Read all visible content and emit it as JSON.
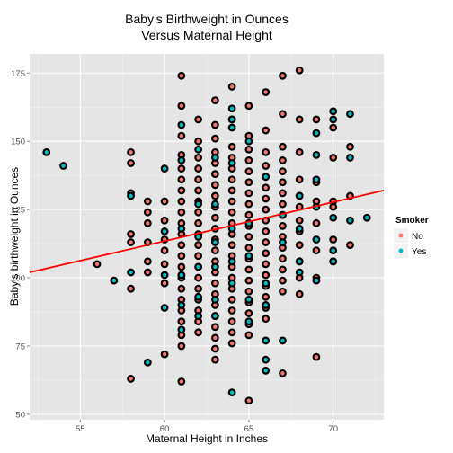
{
  "chart_data": {
    "type": "scatter",
    "title_lines": [
      "Baby's Birthweight in Ounces",
      "Versus Maternal Height"
    ],
    "xlabel": "Maternal Height in Inches",
    "ylabel": "Baby's birthweight in Ounces",
    "xlim": [
      52,
      73
    ],
    "ylim": [
      48,
      182
    ],
    "x_ticks": [
      55,
      60,
      65,
      70
    ],
    "y_ticks": [
      50,
      75,
      100,
      125,
      150,
      175
    ],
    "grid": true,
    "background": "#e5e5e5",
    "legend": {
      "title": "Smoker",
      "placement": "right",
      "entries": [
        {
          "label": "No",
          "color": "#f8766d"
        },
        {
          "label": "Yes",
          "color": "#00bfc4"
        }
      ]
    },
    "regression_line": {
      "color": "#ff0000",
      "points": [
        [
          52,
          102.0
        ],
        [
          73,
          132.0
        ]
      ]
    },
    "series": [
      {
        "name": "No",
        "color": "#f8766d",
        "points": [
          [
            56,
            105
          ],
          [
            58,
            146
          ],
          [
            58,
            142
          ],
          [
            58,
            131
          ],
          [
            58,
            116
          ],
          [
            58,
            113
          ],
          [
            58,
            96
          ],
          [
            58,
            63
          ],
          [
            59,
            128
          ],
          [
            59,
            124
          ],
          [
            59,
            120
          ],
          [
            59,
            113
          ],
          [
            59,
            106
          ],
          [
            59,
            102
          ],
          [
            60,
            128
          ],
          [
            60,
            121
          ],
          [
            60,
            114
          ],
          [
            60,
            110
          ],
          [
            60,
            105
          ],
          [
            60,
            98
          ],
          [
            60,
            72
          ],
          [
            61,
            174
          ],
          [
            61,
            163
          ],
          [
            61,
            152
          ],
          [
            61,
            145
          ],
          [
            61,
            140
          ],
          [
            61,
            136
          ],
          [
            61,
            132
          ],
          [
            61,
            128
          ],
          [
            61,
            124
          ],
          [
            61,
            120
          ],
          [
            61,
            116
          ],
          [
            61,
            112
          ],
          [
            61,
            108
          ],
          [
            61,
            104
          ],
          [
            61,
            100
          ],
          [
            61,
            96
          ],
          [
            61,
            92
          ],
          [
            61,
            88
          ],
          [
            61,
            84
          ],
          [
            61,
            79
          ],
          [
            61,
            75
          ],
          [
            61,
            62
          ],
          [
            62,
            158
          ],
          [
            62,
            150
          ],
          [
            62,
            144
          ],
          [
            62,
            140
          ],
          [
            62,
            136
          ],
          [
            62,
            132
          ],
          [
            62,
            128
          ],
          [
            62,
            124
          ],
          [
            62,
            120
          ],
          [
            62,
            116
          ],
          [
            62,
            112
          ],
          [
            62,
            108
          ],
          [
            62,
            104
          ],
          [
            62,
            100
          ],
          [
            62,
            96
          ],
          [
            62,
            92
          ],
          [
            62,
            88
          ],
          [
            62,
            84
          ],
          [
            62,
            80
          ],
          [
            63,
            165
          ],
          [
            63,
            156
          ],
          [
            63,
            151
          ],
          [
            63,
            146
          ],
          [
            63,
            142
          ],
          [
            63,
            138
          ],
          [
            63,
            134
          ],
          [
            63,
            130
          ],
          [
            63,
            126
          ],
          [
            63,
            122
          ],
          [
            63,
            118
          ],
          [
            63,
            114
          ],
          [
            63,
            110
          ],
          [
            63,
            106
          ],
          [
            63,
            102
          ],
          [
            63,
            98
          ],
          [
            63,
            94
          ],
          [
            63,
            90
          ],
          [
            63,
            86
          ],
          [
            63,
            82
          ],
          [
            63,
            78
          ],
          [
            63,
            74
          ],
          [
            63,
            70
          ],
          [
            64,
            170
          ],
          [
            64,
            158
          ],
          [
            64,
            148
          ],
          [
            64,
            144
          ],
          [
            64,
            140
          ],
          [
            64,
            136
          ],
          [
            64,
            132
          ],
          [
            64,
            128
          ],
          [
            64,
            124
          ],
          [
            64,
            120
          ],
          [
            64,
            116
          ],
          [
            64,
            112
          ],
          [
            64,
            108
          ],
          [
            64,
            104
          ],
          [
            64,
            100
          ],
          [
            64,
            96
          ],
          [
            64,
            92
          ],
          [
            64,
            88
          ],
          [
            64,
            84
          ],
          [
            64,
            80
          ],
          [
            64,
            76
          ],
          [
            65,
            163
          ],
          [
            65,
            152
          ],
          [
            65,
            147
          ],
          [
            65,
            143
          ],
          [
            65,
            139
          ],
          [
            65,
            135
          ],
          [
            65,
            131
          ],
          [
            65,
            127
          ],
          [
            65,
            123
          ],
          [
            65,
            119
          ],
          [
            65,
            115
          ],
          [
            65,
            111
          ],
          [
            65,
            107
          ],
          [
            65,
            103
          ],
          [
            65,
            99
          ],
          [
            65,
            95
          ],
          [
            65,
            91
          ],
          [
            65,
            87
          ],
          [
            65,
            83
          ],
          [
            65,
            79
          ],
          [
            65,
            55
          ],
          [
            66,
            168
          ],
          [
            66,
            154
          ],
          [
            66,
            146
          ],
          [
            66,
            141
          ],
          [
            66,
            137
          ],
          [
            66,
            133
          ],
          [
            66,
            129
          ],
          [
            66,
            125
          ],
          [
            66,
            121
          ],
          [
            66,
            117
          ],
          [
            66,
            113
          ],
          [
            66,
            109
          ],
          [
            66,
            105
          ],
          [
            66,
            101
          ],
          [
            66,
            97
          ],
          [
            66,
            93
          ],
          [
            66,
            89
          ],
          [
            66,
            85
          ],
          [
            67,
            174
          ],
          [
            67,
            160
          ],
          [
            67,
            148
          ],
          [
            67,
            143
          ],
          [
            67,
            139
          ],
          [
            67,
            135
          ],
          [
            67,
            131
          ],
          [
            67,
            127
          ],
          [
            67,
            123
          ],
          [
            67,
            119
          ],
          [
            67,
            115
          ],
          [
            67,
            111
          ],
          [
            67,
            107
          ],
          [
            67,
            103
          ],
          [
            67,
            99
          ],
          [
            67,
            95
          ],
          [
            67,
            65
          ],
          [
            68,
            176
          ],
          [
            68,
            158
          ],
          [
            68,
            146
          ],
          [
            68,
            136
          ],
          [
            68,
            130
          ],
          [
            68,
            126
          ],
          [
            68,
            121
          ],
          [
            68,
            117
          ],
          [
            68,
            112
          ],
          [
            68,
            106
          ],
          [
            68,
            100
          ],
          [
            68,
            94
          ],
          [
            69,
            158
          ],
          [
            69,
            135
          ],
          [
            69,
            128
          ],
          [
            69,
            120
          ],
          [
            69,
            110
          ],
          [
            69,
            100
          ],
          [
            69,
            71
          ],
          [
            70,
            155
          ],
          [
            70,
            144
          ],
          [
            70,
            128
          ],
          [
            70,
            126
          ],
          [
            70,
            114
          ],
          [
            70,
            106
          ],
          [
            71,
            148
          ],
          [
            71,
            130
          ],
          [
            71,
            112
          ]
        ]
      },
      {
        "name": "Yes",
        "color": "#00bfc4",
        "points": [
          [
            53,
            146
          ],
          [
            54,
            141
          ],
          [
            57,
            99
          ],
          [
            58,
            130
          ],
          [
            58,
            102
          ],
          [
            59,
            69
          ],
          [
            60,
            140
          ],
          [
            60,
            117
          ],
          [
            60,
            101
          ],
          [
            60,
            89
          ],
          [
            61,
            156
          ],
          [
            61,
            143
          ],
          [
            61,
            118
          ],
          [
            61,
            101
          ],
          [
            61,
            90
          ],
          [
            61,
            81
          ],
          [
            62,
            147
          ],
          [
            62,
            127
          ],
          [
            62,
            115
          ],
          [
            62,
            104
          ],
          [
            62,
            93
          ],
          [
            62,
            86
          ],
          [
            63,
            144
          ],
          [
            63,
            127
          ],
          [
            63,
            113
          ],
          [
            63,
            104
          ],
          [
            63,
            92
          ],
          [
            63,
            86
          ],
          [
            64,
            162
          ],
          [
            64,
            158
          ],
          [
            64,
            155
          ],
          [
            64,
            142
          ],
          [
            64,
            118
          ],
          [
            64,
            106
          ],
          [
            64,
            98
          ],
          [
            64,
            58
          ],
          [
            65,
            150
          ],
          [
            65,
            120
          ],
          [
            65,
            108
          ],
          [
            65,
            92
          ],
          [
            65,
            84
          ],
          [
            66,
            137
          ],
          [
            66,
            98
          ],
          [
            66,
            90
          ],
          [
            66,
            77
          ],
          [
            66,
            70
          ],
          [
            66,
            66
          ],
          [
            67,
            123
          ],
          [
            67,
            113
          ],
          [
            67,
            77
          ],
          [
            68,
            130
          ],
          [
            68,
            118
          ],
          [
            68,
            106
          ],
          [
            68,
            102
          ],
          [
            69,
            153
          ],
          [
            69,
            145
          ],
          [
            69,
            136
          ],
          [
            69,
            126
          ],
          [
            69,
            114
          ],
          [
            69,
            99
          ],
          [
            70,
            161
          ],
          [
            70,
            158
          ],
          [
            70,
            122
          ],
          [
            70,
            110
          ],
          [
            70,
            106
          ],
          [
            71,
            160
          ],
          [
            71,
            144
          ],
          [
            71,
            121
          ],
          [
            72,
            122
          ]
        ]
      }
    ]
  }
}
